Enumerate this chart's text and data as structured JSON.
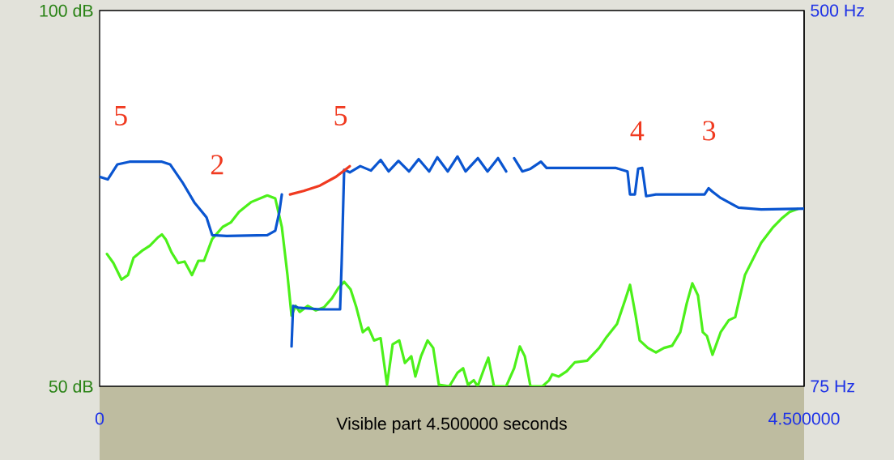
{
  "chart_data": {
    "type": "line",
    "xlabel": "Visible part 4.500000 seconds",
    "xlim": [
      0,
      4.5
    ],
    "xticks": [
      0,
      {
        "value": 4.5,
        "label": "4.500000"
      }
    ],
    "ylim": [
      50,
      100
    ],
    "yticks": [
      {
        "value": 50,
        "label": "50 dB"
      },
      {
        "value": 100,
        "label": "100 dB"
      }
    ],
    "y2lim": [
      75,
      500
    ],
    "y2ticks": [
      {
        "value": 75,
        "label": "75 Hz"
      },
      {
        "value": 500,
        "label": "500 Hz"
      }
    ],
    "series": [
      {
        "color": "#4cf01a",
        "x": [
          0.047,
          0.088,
          0.14,
          0.181,
          0.217,
          0.269,
          0.321,
          0.372,
          0.398,
          0.424,
          0.46,
          0.502,
          0.543,
          0.59,
          0.631,
          0.667,
          0.719,
          0.786,
          0.838,
          0.89,
          0.967,
          1.071,
          1.122,
          1.164,
          1.2,
          1.226,
          1.252,
          1.278,
          1.329,
          1.381,
          1.433,
          1.484,
          1.526,
          1.562,
          1.603,
          1.64,
          1.681,
          1.717,
          1.753,
          1.795,
          1.836,
          1.872,
          1.914,
          1.95,
          1.991,
          2.017,
          2.053,
          2.095,
          2.131,
          2.167,
          2.234,
          2.286,
          2.322,
          2.353,
          2.39,
          2.415,
          2.457,
          2.483,
          2.519,
          2.597,
          2.648,
          2.684,
          2.716,
          2.752,
          2.829,
          2.871,
          2.891,
          2.933,
          2.984,
          3.036,
          3.114,
          3.191,
          3.233,
          3.305,
          3.357,
          3.388,
          3.424,
          3.45,
          3.502,
          3.553,
          3.605,
          3.657,
          3.709,
          3.75,
          3.786,
          3.822,
          3.853,
          3.879,
          3.915,
          3.967,
          4.019,
          4.06,
          4.122,
          4.226,
          4.303,
          4.355,
          4.407,
          4.459
        ],
        "values": [
          67.6,
          66.4,
          64.2,
          64.8,
          67.1,
          68.0,
          68.7,
          69.8,
          70.2,
          69.5,
          67.8,
          66.4,
          66.6,
          64.8,
          66.7,
          66.7,
          69.6,
          71.2,
          71.8,
          73.2,
          74.5,
          75.4,
          75.0,
          71.2,
          64.8,
          59.4,
          60.7,
          59.9,
          60.7,
          60.1,
          60.5,
          61.7,
          63.1,
          63.9,
          62.9,
          60.5,
          57.2,
          57.8,
          56.1,
          56.4,
          50.2,
          55.6,
          56.1,
          53.1,
          54.0,
          51.3,
          54.0,
          56.1,
          55.1,
          50.2,
          50.0,
          51.8,
          52.4,
          50.2,
          50.8,
          50.0,
          52.4,
          53.8,
          50.0,
          50.0,
          52.4,
          55.3,
          54.0,
          50.0,
          50.0,
          50.8,
          51.6,
          51.3,
          52.0,
          53.2,
          53.4,
          55.1,
          56.4,
          58.3,
          61.5,
          63.5,
          59.4,
          56.1,
          55.1,
          54.5,
          55.1,
          55.4,
          57.2,
          61.0,
          63.7,
          62.1,
          57.2,
          56.7,
          54.2,
          57.2,
          58.8,
          59.2,
          64.8,
          69.1,
          71.2,
          72.3,
          73.2,
          73.6
        ]
      },
      {
        "color": "#0a55d0",
        "axis": "y2",
        "x": [
          0,
          0.052,
          0.114,
          0.191,
          0.398,
          0.45,
          0.528,
          0.605,
          0.683,
          0.719,
          0.812,
          1.071,
          1.122,
          1.148,
          1.164,
          1.195,
          1.226,
          1.236,
          1.267,
          1.407,
          1.536,
          1.546,
          1.562,
          1.598,
          1.665,
          1.733,
          1.795,
          1.846,
          1.909,
          1.976,
          2.038,
          2.105,
          2.157,
          2.224,
          2.286,
          2.338,
          2.416,
          2.478,
          2.545,
          2.597,
          2.62,
          2.648,
          2.7,
          2.752,
          2.819,
          2.855,
          2.984,
          3.295,
          3.372,
          3.388,
          3.419,
          3.44,
          3.466,
          3.491,
          3.553,
          3.864,
          3.89,
          3.915,
          3.967,
          4.081,
          4.226,
          4.5
        ],
        "values": [
          312,
          309,
          326,
          329,
          329,
          326,
          306,
          283,
          266,
          246,
          245,
          246,
          251,
          272,
          292,
          null,
          120,
          166,
          164,
          162,
          162,
          214,
          320,
          317,
          324,
          319,
          331,
          318,
          330,
          318,
          332,
          318,
          334,
          318,
          335,
          318,
          333,
          318,
          333,
          318,
          null,
          333,
          318,
          321,
          329,
          322,
          322,
          322,
          318,
          292,
          292,
          321,
          322,
          290,
          292,
          292,
          299,
          295,
          288,
          277,
          275,
          276
        ]
      },
      {
        "color": "#f03a20",
        "axis": "y2",
        "x": [
          1.216,
          1.303,
          1.407,
          1.51,
          1.598
        ],
        "values": [
          292,
          296,
          302,
          312,
          324
        ]
      }
    ],
    "annotations": [
      "5",
      "2",
      "5",
      "4",
      "3"
    ]
  }
}
